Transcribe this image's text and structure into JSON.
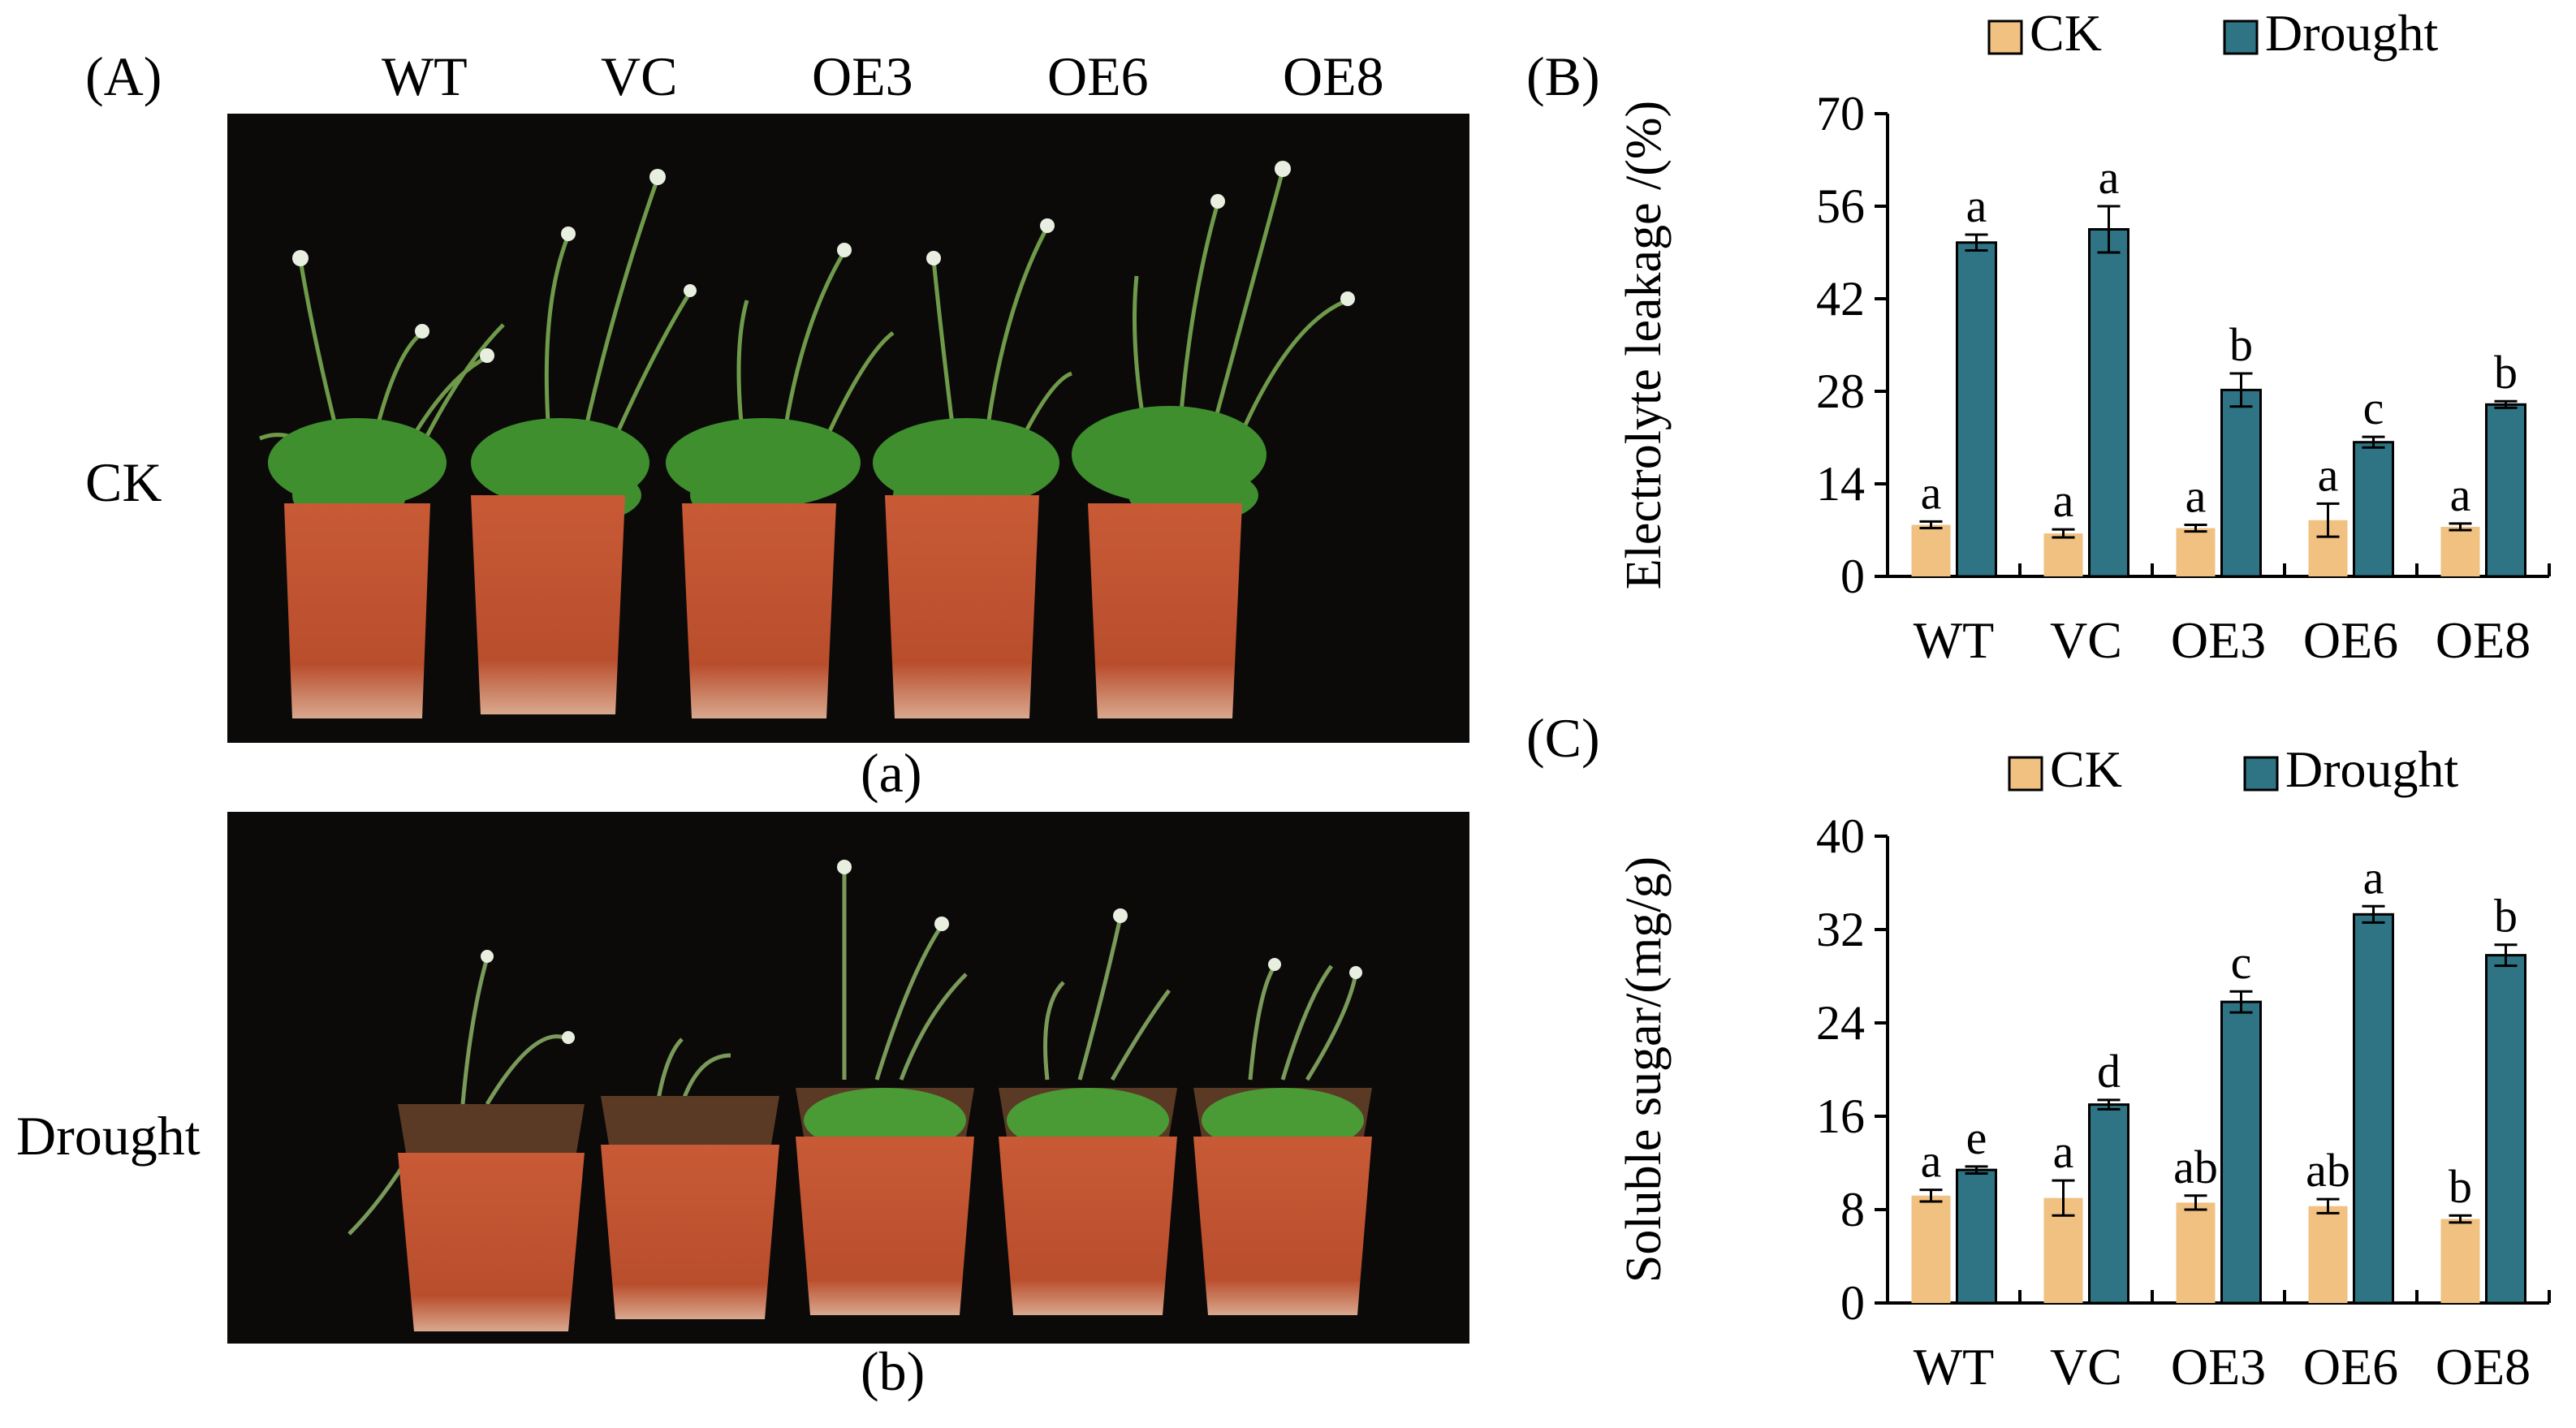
{
  "panel_a": {
    "panel_label": "(A)",
    "genotypes": [
      "WT",
      "VC",
      "OE3",
      "OE6",
      "OE8"
    ],
    "rows": [
      {
        "row_label": "CK",
        "sublabel": "(a)"
      },
      {
        "row_label": "Drought",
        "sublabel": "(b)"
      }
    ]
  },
  "chart_data": [
    {
      "type": "bar",
      "panel_label": "(B)",
      "title": "",
      "xlabel": "",
      "ylabel": "Electrolyte leakage /(%)",
      "categories": [
        "WT",
        "VC",
        "OE3",
        "OE6",
        "OE8"
      ],
      "ylim": [
        0,
        70
      ],
      "yticks": [
        0,
        14,
        28,
        42,
        56,
        70
      ],
      "grid": false,
      "legend_position": "top",
      "series": [
        {
          "name": "CK",
          "color": "#f0c180",
          "values": [
            7.8,
            6.5,
            7.3,
            8.5,
            7.5
          ],
          "errors": [
            0.5,
            0.6,
            0.5,
            2.5,
            0.5
          ],
          "letters": [
            "a",
            "a",
            "a",
            "a",
            "a"
          ]
        },
        {
          "name": "Drought",
          "color": "#2e7484",
          "values": [
            50.5,
            52.5,
            28.2,
            20.3,
            26.0
          ],
          "errors": [
            1.2,
            3.5,
            2.5,
            0.8,
            0.5
          ],
          "letters": [
            "a",
            "a",
            "b",
            "c",
            "b"
          ]
        }
      ]
    },
    {
      "type": "bar",
      "panel_label": "(C)",
      "title": "",
      "xlabel": "",
      "ylabel": "Soluble sugar/(mg/g)",
      "categories": [
        "WT",
        "VC",
        "OE3",
        "OE6",
        "OE8"
      ],
      "ylim": [
        0,
        40
      ],
      "yticks": [
        0,
        8,
        16,
        24,
        32,
        40
      ],
      "grid": false,
      "legend_position": "top",
      "series": [
        {
          "name": "CK",
          "color": "#f0c180",
          "values": [
            9.2,
            9.0,
            8.6,
            8.3,
            7.2
          ],
          "errors": [
            0.5,
            1.5,
            0.6,
            0.6,
            0.3
          ],
          "letters": [
            "a",
            "a",
            "ab",
            "ab",
            "b"
          ]
        },
        {
          "name": "Drought",
          "color": "#2e7484",
          "values": [
            11.4,
            17.0,
            25.8,
            33.3,
            29.8
          ],
          "errors": [
            0.3,
            0.4,
            0.9,
            0.7,
            0.9
          ],
          "letters": [
            "e",
            "d",
            "c",
            "a",
            "b"
          ]
        }
      ]
    }
  ]
}
